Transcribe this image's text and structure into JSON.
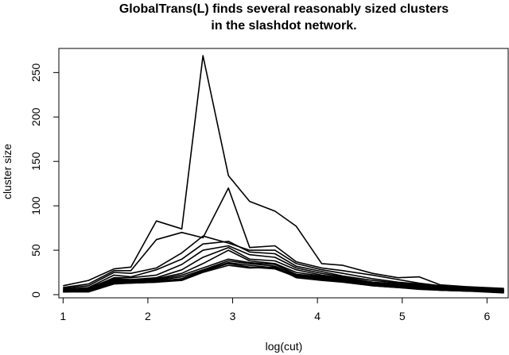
{
  "chart_data": {
    "type": "line",
    "title": [
      "GlobalTrans(L) finds several reasonably sized clusters",
      "in the slashdot network."
    ],
    "xlabel": "log(cut)",
    "ylabel": "cluster size",
    "xlim": [
      0.95,
      6.25
    ],
    "ylim": [
      0,
      270
    ],
    "xticks": [
      1,
      2,
      3,
      4,
      5,
      6
    ],
    "yticks": [
      0,
      50,
      100,
      150,
      200,
      250
    ],
    "grid": false,
    "legend": "none",
    "line_color": "#000000",
    "x": [
      1.0,
      1.3,
      1.6,
      1.8,
      2.1,
      2.4,
      2.65,
      2.95,
      3.2,
      3.5,
      3.75,
      4.05,
      4.3,
      4.65,
      4.95,
      5.2,
      5.45,
      5.75,
      6.2
    ],
    "series": [
      {
        "values": [
          10,
          16,
          29,
          31,
          83,
          74,
          269,
          134,
          105,
          94,
          77,
          35,
          33,
          24,
          19,
          20,
          11,
          9,
          7
        ]
      },
      {
        "values": [
          8,
          12,
          27,
          27,
          62,
          70,
          64,
          120,
          53,
          55,
          37,
          30,
          27,
          22,
          17,
          13,
          10,
          8,
          6
        ]
      },
      {
        "values": [
          7,
          10,
          25,
          24,
          30,
          47,
          66,
          58,
          50,
          50,
          35,
          28,
          24,
          18,
          14,
          12,
          9,
          7,
          6
        ]
      },
      {
        "values": [
          6,
          8,
          22,
          20,
          28,
          40,
          57,
          60,
          48,
          46,
          32,
          26,
          21,
          16,
          13,
          11,
          8,
          7,
          5
        ]
      },
      {
        "values": [
          6,
          7,
          19,
          19,
          22,
          34,
          50,
          55,
          45,
          42,
          30,
          24,
          20,
          14,
          12,
          10,
          8,
          6,
          5
        ]
      },
      {
        "values": [
          5,
          7,
          18,
          17,
          19,
          28,
          42,
          53,
          40,
          38,
          28,
          22,
          19,
          13,
          11,
          9,
          7,
          6,
          4
        ]
      },
      {
        "values": [
          5,
          6,
          17,
          16,
          18,
          24,
          35,
          50,
          38,
          35,
          25,
          21,
          18,
          12,
          10,
          9,
          7,
          5,
          4
        ]
      },
      {
        "values": [
          4,
          5,
          16,
          15,
          17,
          22,
          30,
          40,
          36,
          34,
          23,
          20,
          17,
          12,
          10,
          8,
          6,
          5,
          4
        ]
      },
      {
        "values": [
          4,
          5,
          15,
          14,
          16,
          20,
          28,
          38,
          35,
          32,
          22,
          19,
          16,
          11,
          9,
          8,
          6,
          5,
          3
        ]
      },
      {
        "values": [
          3,
          4,
          14,
          14,
          15,
          18,
          27,
          36,
          33,
          30,
          21,
          18,
          15,
          11,
          9,
          7,
          5,
          4,
          3
        ]
      },
      {
        "values": [
          3,
          4,
          13,
          13,
          14,
          17,
          26,
          35,
          31,
          29,
          20,
          17,
          15,
          10,
          8,
          7,
          5,
          4,
          3
        ]
      },
      {
        "values": [
          3,
          3,
          12,
          13,
          14,
          16,
          25,
          33,
          30,
          31,
          19,
          16,
          14,
          10,
          8,
          6,
          5,
          4,
          2
        ]
      }
    ]
  }
}
